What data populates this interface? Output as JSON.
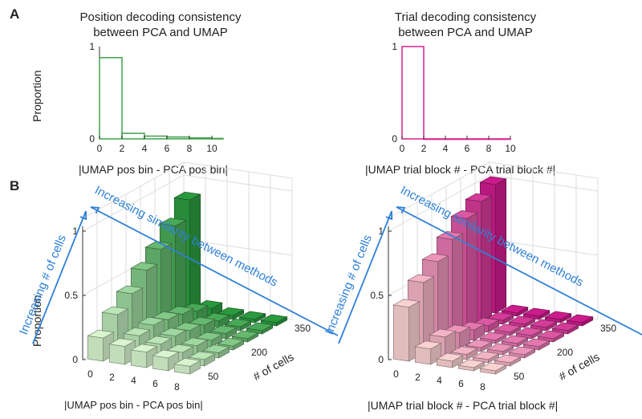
{
  "panel_labels": {
    "a": "A",
    "b": "B"
  },
  "colors": {
    "green": "#3fa04a",
    "magenta": "#d4208f",
    "annotation_blue": "#2f80d6",
    "green_light": "#d8f5cf",
    "green_dark": "#2b9a3f",
    "pink_light": "#fbd2d2",
    "pink_dark": "#cc1b8c"
  },
  "chart_data": [
    {
      "type": "histogram",
      "title": "Position decoding consistency\nbetween PCA and UMAP",
      "title_line1": "Position decoding consistency",
      "title_line2": "between PCA and UMAP",
      "xlabel": "|UMAP pos bin - PCA pos bin|",
      "ylabel": "Proportion",
      "xlim": [
        0,
        11
      ],
      "ylim": [
        0,
        1
      ],
      "xticks": [
        "0",
        "2",
        "4",
        "6",
        "8",
        "10"
      ],
      "yticks": [
        "0",
        "1"
      ],
      "bins": [
        [
          0,
          2
        ],
        [
          2,
          4
        ],
        [
          4,
          6
        ],
        [
          6,
          8
        ],
        [
          8,
          10
        ],
        [
          10,
          11
        ]
      ],
      "values": [
        0.88,
        0.06,
        0.03,
        0.02,
        0.01,
        0.005
      ],
      "color": "#3fa04a"
    },
    {
      "type": "histogram",
      "title": "Trial decoding consistency\nbetween PCA and UMAP",
      "title_line1": "Trial decoding consistency",
      "title_line2": "between PCA and UMAP",
      "xlabel": "|UMAP trial block # - PCA trial block #|",
      "ylabel": "",
      "xlim": [
        0,
        10
      ],
      "ylim": [
        0,
        1
      ],
      "xticks": [
        "0",
        "2",
        "4",
        "6",
        "8",
        "10"
      ],
      "yticks": [
        "0",
        "1"
      ],
      "bins": [
        [
          0,
          2
        ],
        [
          2,
          4
        ],
        [
          4,
          6
        ],
        [
          6,
          8
        ],
        [
          8,
          10
        ]
      ],
      "values": [
        1.0,
        0,
        0,
        0,
        0
      ],
      "color": "#d4208f"
    },
    {
      "type": "bar3d",
      "xlabel": "|UMAP pos bin - PCA pos bin|",
      "ylabel": "# of cells",
      "zlabel": "Proportion",
      "x_ticks": [
        "0",
        "2",
        "4",
        "6",
        "8"
      ],
      "y_ticks": [
        "50",
        "200",
        "350"
      ],
      "z_ticks": [
        "0",
        "0.5",
        "1"
      ],
      "x_bins": [
        0,
        2,
        4,
        6,
        8
      ],
      "cell_counts": [
        50,
        100,
        150,
        200,
        250,
        300,
        350
      ],
      "values_by_cells": [
        [
          0.18,
          0.14,
          0.12,
          0.1,
          0.06
        ],
        [
          0.3,
          0.16,
          0.12,
          0.08,
          0.05
        ],
        [
          0.4,
          0.18,
          0.12,
          0.07,
          0.04
        ],
        [
          0.52,
          0.16,
          0.1,
          0.05,
          0.03
        ],
        [
          0.62,
          0.14,
          0.08,
          0.04,
          0.02
        ],
        [
          0.74,
          0.1,
          0.05,
          0.03,
          0.02
        ],
        [
          0.88,
          0.06,
          0.03,
          0.02,
          0.01
        ]
      ],
      "annotation_cells": "Increasing # of cells",
      "annotation_similarity": "Increasing similarity between methods",
      "color_light": "#d8f5cf",
      "color_dark": "#2b9a3f"
    },
    {
      "type": "bar3d",
      "xlabel": "|UMAP trial block # - PCA trial block #|",
      "ylabel": "# of cells",
      "zlabel": "",
      "x_ticks": [
        "0",
        "2",
        "4",
        "6",
        "8"
      ],
      "y_ticks": [
        "50",
        "200",
        "350"
      ],
      "z_ticks": [
        "0",
        "0.5",
        "1"
      ],
      "x_bins": [
        0,
        2,
        4,
        6,
        8
      ],
      "cell_counts": [
        50,
        100,
        150,
        200,
        250,
        300,
        350
      ],
      "values_by_cells": [
        [
          0.42,
          0.12,
          0.05,
          0.02,
          0.01
        ],
        [
          0.55,
          0.15,
          0.04,
          0.01,
          0.0
        ],
        [
          0.65,
          0.12,
          0.03,
          0.0,
          0.0
        ],
        [
          0.76,
          0.08,
          0.02,
          0.0,
          0.0
        ],
        [
          0.86,
          0.05,
          0.01,
          0.0,
          0.0
        ],
        [
          0.93,
          0.03,
          0.0,
          0.0,
          0.0
        ],
        [
          1.0,
          0.0,
          0.0,
          0.0,
          0.0
        ]
      ],
      "annotation_cells": "Increasing # of cells",
      "annotation_similarity": "Increasing similarity between methods",
      "color_light": "#fbd2d2",
      "color_dark": "#cc1b8c"
    }
  ]
}
